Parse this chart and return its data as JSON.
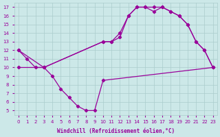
{
  "xlabel": "Windchill (Refroidissement éolien,°C)",
  "bg_color": "#cce8e8",
  "line_color": "#990099",
  "grid_color": "#aacccc",
  "xlim": [
    -0.5,
    23.5
  ],
  "ylim": [
    4.5,
    17.5
  ],
  "xticks": [
    0,
    1,
    2,
    3,
    4,
    5,
    6,
    7,
    8,
    9,
    10,
    11,
    12,
    13,
    14,
    15,
    16,
    17,
    18,
    19,
    20,
    21,
    22,
    23
  ],
  "yticks": [
    5,
    6,
    7,
    8,
    9,
    10,
    11,
    12,
    13,
    14,
    15,
    16,
    17
  ],
  "line1_x": [
    0,
    1,
    2,
    3,
    4,
    5,
    6,
    7,
    8,
    9,
    10,
    23
  ],
  "line1_y": [
    12,
    11,
    10,
    10,
    9,
    7.5,
    6.5,
    5.5,
    5,
    5,
    8.5,
    10
  ],
  "line2_x": [
    0,
    3,
    10,
    11,
    12,
    13,
    14,
    15,
    16,
    17,
    18,
    19,
    20,
    21,
    22,
    23
  ],
  "line2_y": [
    10,
    10,
    13,
    13,
    13.5,
    16,
    17,
    17,
    16.5,
    17,
    16.5,
    16,
    15,
    13,
    12,
    10
  ],
  "line3_x": [
    0,
    3,
    10,
    11,
    12,
    13,
    14,
    15,
    16,
    17,
    18,
    19,
    20,
    21,
    22,
    23
  ],
  "line3_y": [
    12,
    10,
    13,
    13,
    14,
    16,
    17,
    17,
    17,
    17,
    16.5,
    16,
    15,
    13,
    12,
    10
  ]
}
